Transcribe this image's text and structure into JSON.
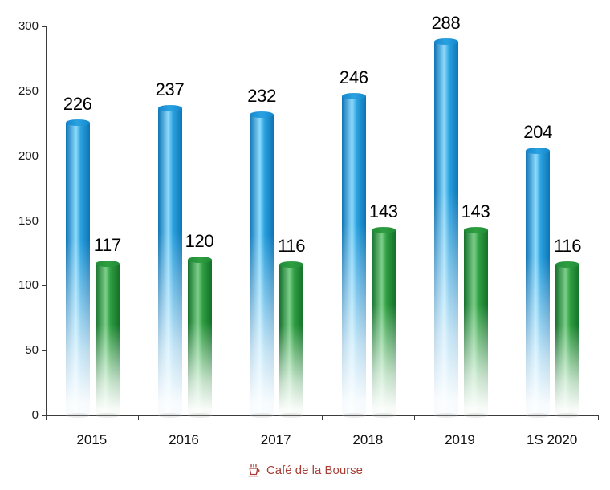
{
  "chart_data": {
    "type": "bar",
    "title": "",
    "xlabel": "",
    "ylabel": "",
    "categories": [
      "2015",
      "2016",
      "2017",
      "2018",
      "2019",
      "1S 2020"
    ],
    "series": [
      {
        "name": "series-blue",
        "color": "#2aa2e0",
        "color_light": "#8edafc",
        "color_dark": "#0e74b4",
        "cap_color": "#1487cf",
        "values": [
          226,
          237,
          232,
          246,
          288,
          204
        ]
      },
      {
        "name": "series-green",
        "color": "#2f9e41",
        "color_light": "#7ccf8a",
        "color_dark": "#14702a",
        "cap_color": "#1f8c36",
        "values": [
          117,
          120,
          116,
          143,
          143,
          116
        ]
      }
    ],
    "ylim": [
      0,
      300
    ],
    "yticks": [
      0,
      50,
      100,
      150,
      200,
      250,
      300
    ],
    "grid": false,
    "legend": "none"
  },
  "footer": {
    "brand": "Café de la Bourse"
  },
  "colors": {
    "axis": "#3c3c3c",
    "value_label": "#000000",
    "brand": "#a63e36",
    "background": "#ffffff"
  }
}
